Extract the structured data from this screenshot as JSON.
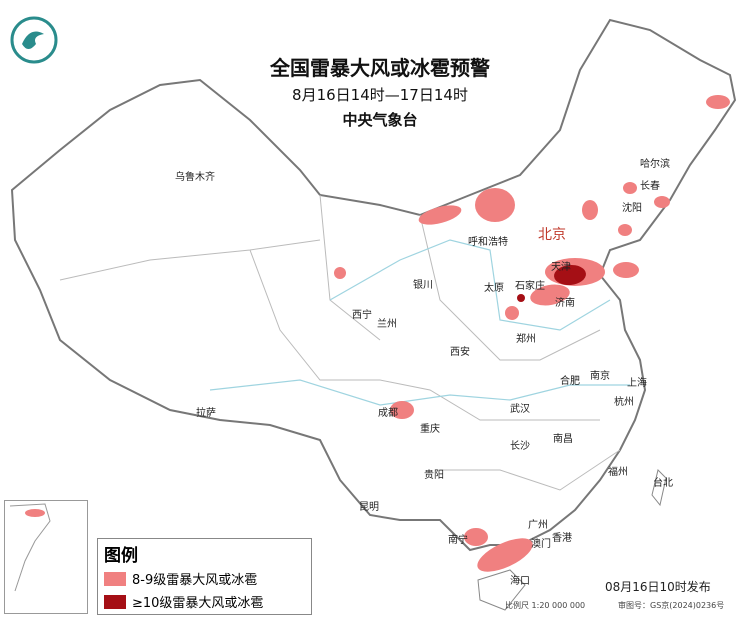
{
  "header": {
    "title": "全国雷暴大风或冰雹预警",
    "period": "8月16日14时—17日14时",
    "issuer": "中央气象台"
  },
  "legend": {
    "title": "图例",
    "items": [
      {
        "label": "8-9级雷暴大风或冰雹",
        "color": "#f08080"
      },
      {
        "label": "≥10级雷暴大风或冰雹",
        "color": "#a50f15"
      }
    ]
  },
  "footer": {
    "published": "08月16日10时发布",
    "scale": "比例尺 1:20 000 000",
    "review_no": "审图号：GS京(2024)0236号"
  },
  "cities": [
    "乌鲁木齐",
    "哈尔滨",
    "长春",
    "沈阳",
    "北京",
    "天津",
    "呼和浩特",
    "石家庄",
    "太原",
    "济南",
    "银川",
    "西宁",
    "兰州",
    "西安",
    "郑州",
    "合肥",
    "南京",
    "上海",
    "杭州",
    "武汉",
    "成都",
    "重庆",
    "长沙",
    "南昌",
    "拉萨",
    "贵阳",
    "福州",
    "台北",
    "昆明",
    "南宁",
    "广州",
    "香港",
    "澳门",
    "海口"
  ],
  "colors": {
    "level_8_9": "#f08080",
    "level_10_plus": "#a50f15",
    "border": "#777777",
    "river": "#9fd4e0"
  },
  "logo": "cma-logo-icon"
}
